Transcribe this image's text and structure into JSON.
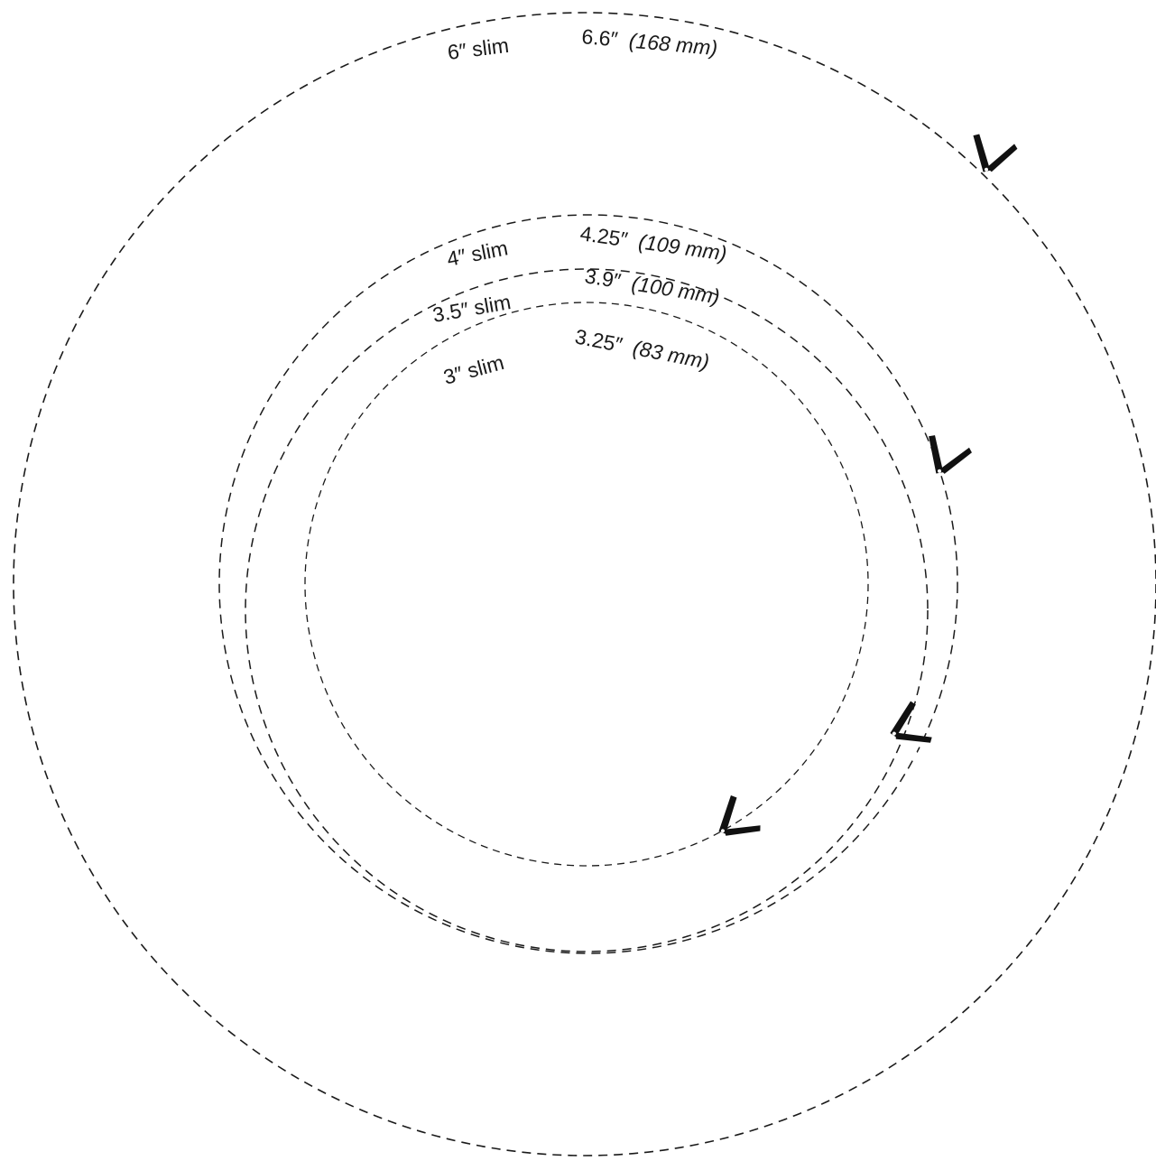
{
  "diagram": {
    "rings": [
      {
        "id": "6-slim",
        "slim_label": "6″ slim",
        "diameter_inch": "6.6″",
        "diameter_mm": "(168 mm)"
      },
      {
        "id": "4-slim",
        "slim_label": "4″ slim",
        "diameter_inch": "4.25″",
        "diameter_mm": "(109 mm)"
      },
      {
        "id": "3-5-slim",
        "slim_label": "3.5″ slim",
        "diameter_inch": "3.9″",
        "diameter_mm": "(100 mm)"
      },
      {
        "id": "3-slim",
        "slim_label": "3″ slim",
        "diameter_inch": "3.25″",
        "diameter_mm": "(83 mm)"
      }
    ],
    "icons": {
      "cut_marker": "scissors-icon"
    },
    "colors": {
      "line": "#1a1a1a",
      "background": "#ffffff"
    }
  }
}
